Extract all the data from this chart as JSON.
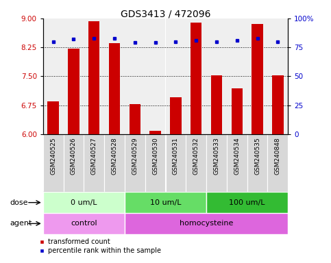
{
  "title": "GDS3413 / 472096",
  "samples": [
    "GSM240525",
    "GSM240526",
    "GSM240527",
    "GSM240528",
    "GSM240529",
    "GSM240530",
    "GSM240531",
    "GSM240532",
    "GSM240533",
    "GSM240534",
    "GSM240535",
    "GSM240848"
  ],
  "red_values": [
    6.85,
    8.22,
    8.93,
    8.35,
    6.78,
    6.08,
    6.95,
    8.9,
    7.52,
    7.18,
    8.85,
    7.52
  ],
  "blue_values": [
    80,
    82,
    83,
    83,
    79,
    79,
    80,
    81,
    80,
    81,
    83,
    80
  ],
  "ylim_left": [
    6,
    9
  ],
  "ylim_right": [
    0,
    100
  ],
  "yticks_left": [
    6,
    6.75,
    7.5,
    8.25,
    9
  ],
  "yticks_right": [
    0,
    25,
    50,
    75,
    100
  ],
  "dotted_lines": [
    6.75,
    7.5,
    8.25
  ],
  "bar_color": "#cc0000",
  "dot_color": "#0000cc",
  "col_bg_color": "#d8d8d8",
  "dose_groups": [
    {
      "label": "0 um/L",
      "start": 0,
      "end": 4,
      "color": "#ccffcc"
    },
    {
      "label": "10 um/L",
      "start": 4,
      "end": 8,
      "color": "#66dd66"
    },
    {
      "label": "100 um/L",
      "start": 8,
      "end": 12,
      "color": "#33bb33"
    }
  ],
  "agent_groups": [
    {
      "label": "control",
      "start": 0,
      "end": 4,
      "color": "#ee99ee"
    },
    {
      "label": "homocysteine",
      "start": 4,
      "end": 12,
      "color": "#dd66dd"
    }
  ],
  "legend_red": "transformed count",
  "legend_blue": "percentile rank within the sample",
  "bar_width": 0.55,
  "title_fontsize": 10,
  "tick_fontsize": 7.5,
  "label_fontsize": 7.5,
  "sample_fontsize": 6.5
}
